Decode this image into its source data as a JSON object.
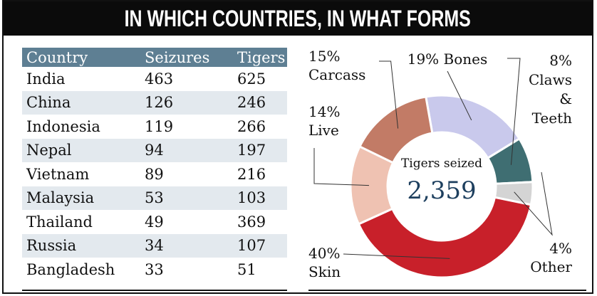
{
  "title": "IN WHICH COUNTRIES, IN WHAT FORMS",
  "table": {
    "headers": [
      "Country",
      "Seizures",
      "Tigers"
    ],
    "rows": [
      [
        "India",
        "463",
        "625"
      ],
      [
        "China",
        "126",
        "246"
      ],
      [
        "Indonesia",
        "119",
        "266"
      ],
      [
        "Nepal",
        "94",
        "197"
      ],
      [
        "Vietnam",
        "89",
        "216"
      ],
      [
        "Malaysia",
        "53",
        "103"
      ],
      [
        "Thailand",
        "49",
        "369"
      ],
      [
        "Russia",
        "34",
        "107"
      ],
      [
        "Bangladesh",
        "33",
        "51"
      ]
    ]
  },
  "chart_data": [
    {
      "type": "table",
      "columns": [
        "Country",
        "Seizures",
        "Tigers"
      ],
      "rows": [
        [
          "India",
          463,
          625
        ],
        [
          "China",
          126,
          246
        ],
        [
          "Indonesia",
          119,
          266
        ],
        [
          "Nepal",
          94,
          197
        ],
        [
          "Vietnam",
          89,
          216
        ],
        [
          "Malaysia",
          53,
          103
        ],
        [
          "Thailand",
          49,
          369
        ],
        [
          "Russia",
          34,
          107
        ],
        [
          "Bangladesh",
          33,
          51
        ]
      ]
    },
    {
      "type": "pie",
      "center_label": "Tigers seized",
      "center_value": "2,359",
      "slices": [
        {
          "pct_label": "19%",
          "label": "Bones",
          "value": 19,
          "color": "#c9c9ec"
        },
        {
          "pct_label": "8%",
          "label": "Claws & Teeth",
          "label_lines": [
            "Claws",
            "&",
            "Teeth"
          ],
          "value": 8,
          "color": "#3f6e72"
        },
        {
          "pct_label": "4%",
          "label": "Other",
          "value": 4,
          "color": "#d4d4d4"
        },
        {
          "pct_label": "40%",
          "label": "Skin",
          "value": 40,
          "color": "#c8202a"
        },
        {
          "pct_label": "14%",
          "label": "Live",
          "value": 14,
          "color": "#efc2b2"
        },
        {
          "pct_label": "15%",
          "label": "Carcass",
          "value": 15,
          "color": "#c27b66"
        }
      ]
    }
  ]
}
